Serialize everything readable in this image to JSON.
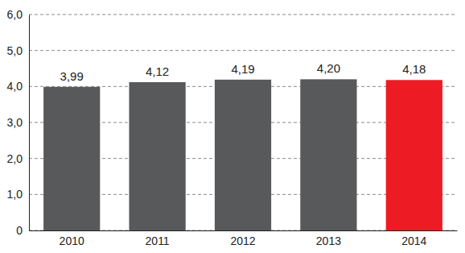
{
  "chart_data": {
    "type": "bar",
    "categories": [
      "2010",
      "2011",
      "2012",
      "2013",
      "2014"
    ],
    "values": [
      3.99,
      4.12,
      4.19,
      4.2,
      4.18
    ],
    "value_labels": [
      "3,99",
      "4,12",
      "4,19",
      "4,20",
      "4,18"
    ],
    "colors": [
      "#58595b",
      "#58595b",
      "#58595b",
      "#58595b",
      "#ed1c24"
    ],
    "ylim": [
      0,
      6
    ],
    "yticks": [
      0,
      {
        "value": 1,
        "label": "1,0"
      },
      {
        "value": 2,
        "label": "2,0"
      },
      {
        "value": 3,
        "label": "3,0"
      },
      {
        "value": 4,
        "label": "4,0"
      },
      {
        "value": 5,
        "label": "5,0"
      },
      {
        "value": 6,
        "label": "6,0"
      }
    ],
    "grid": true,
    "data_labels": true
  }
}
